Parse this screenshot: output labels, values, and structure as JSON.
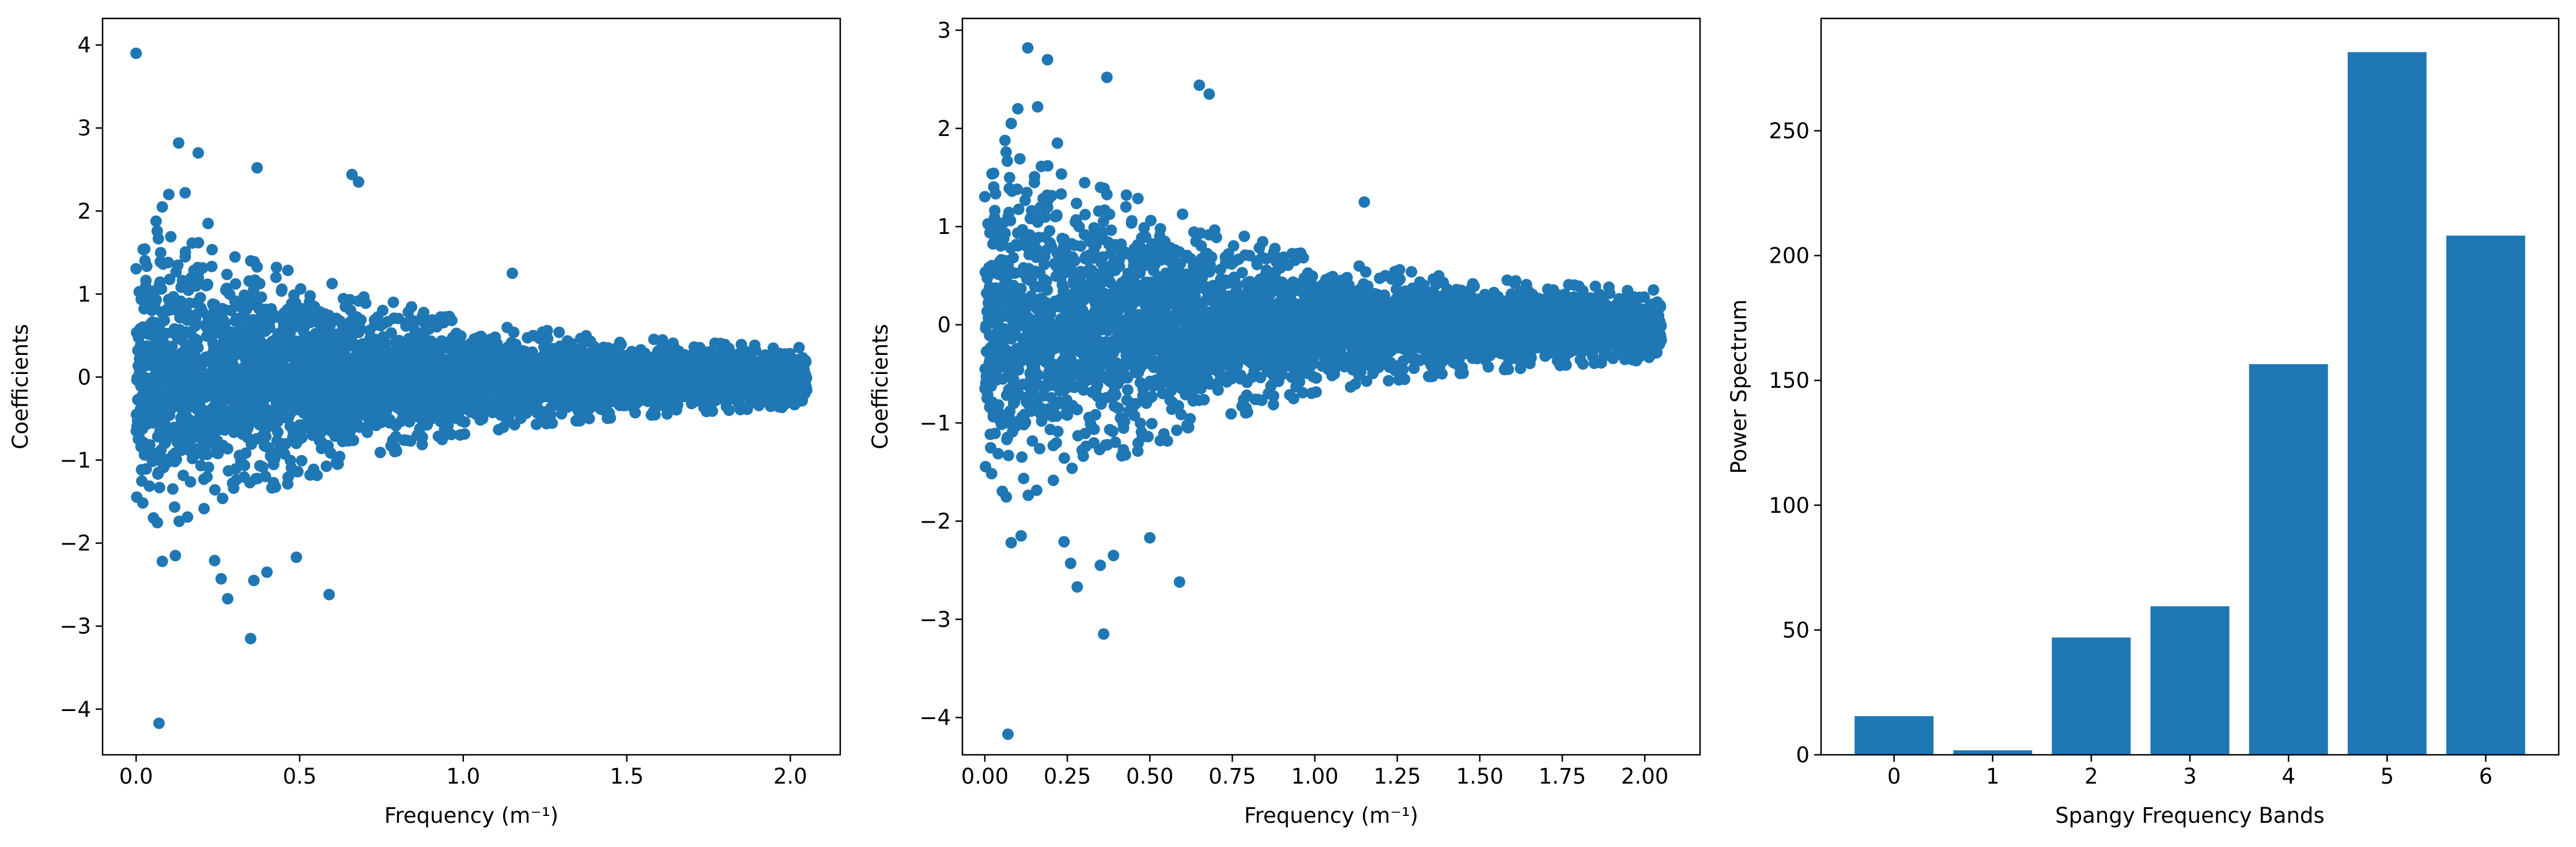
{
  "colors": {
    "marker": "#1f77b4",
    "bar": "#1f77b4",
    "axis": "#000000",
    "background": "#ffffff"
  },
  "chart_data": [
    {
      "type": "scatter",
      "xlabel": "Frequency (m⁻¹)",
      "ylabel": "Coefficients",
      "xlim": [
        -0.1025,
        2.1525
      ],
      "ylim": [
        -4.55,
        4.32
      ],
      "xticks": [
        0.0,
        0.5,
        1.0,
        1.5,
        2.0
      ],
      "xtick_labels": [
        "0.0",
        "0.5",
        "1.0",
        "1.5",
        "2.0"
      ],
      "yticks": [
        -4,
        -3,
        -2,
        -1,
        0,
        1,
        2,
        3,
        4
      ],
      "ytick_labels": [
        "−4",
        "−3",
        "−2",
        "−1",
        "0",
        "1",
        "2",
        "3",
        "4"
      ],
      "grid": false,
      "series": [
        {
          "x_range": [
            0.0,
            2.05
          ],
          "point_count": 4096,
          "envelope": {
            "x": [
              0.0,
              0.25,
              0.5,
              0.75,
              1.0,
              1.25,
              1.5,
              1.75,
              2.05
            ],
            "spread": [
              1.6,
              1.2,
              1.0,
              0.75,
              0.55,
              0.45,
              0.38,
              0.33,
              0.28
            ]
          },
          "outliers": [
            {
              "x": 0.0,
              "y": 3.9
            },
            {
              "x": 0.07,
              "y": -4.17
            },
            {
              "x": 0.35,
              "y": -3.15
            },
            {
              "x": 0.13,
              "y": 2.82
            },
            {
              "x": 0.19,
              "y": 2.7
            },
            {
              "x": 0.37,
              "y": 2.52
            },
            {
              "x": 0.1,
              "y": 2.2
            },
            {
              "x": 0.15,
              "y": 2.22
            },
            {
              "x": 0.66,
              "y": 2.44
            },
            {
              "x": 0.68,
              "y": 2.35
            },
            {
              "x": 0.08,
              "y": 2.05
            },
            {
              "x": 0.22,
              "y": 1.85
            },
            {
              "x": 0.08,
              "y": -2.22
            },
            {
              "x": 0.12,
              "y": -2.15
            },
            {
              "x": 0.24,
              "y": -2.21
            },
            {
              "x": 0.28,
              "y": -2.67
            },
            {
              "x": 0.26,
              "y": -2.43
            },
            {
              "x": 0.36,
              "y": -2.45
            },
            {
              "x": 0.4,
              "y": -2.35
            },
            {
              "x": 0.49,
              "y": -2.17
            },
            {
              "x": 0.59,
              "y": -2.62
            },
            {
              "x": 1.15,
              "y": 1.25
            }
          ]
        }
      ]
    },
    {
      "type": "scatter",
      "xlabel": "Frequency (m⁻¹)",
      "ylabel": "Coefficients",
      "xlim": [
        -0.068,
        2.1675
      ],
      "ylim": [
        -4.38,
        3.12
      ],
      "xticks": [
        0.0,
        0.25,
        0.5,
        0.75,
        1.0,
        1.25,
        1.5,
        1.75,
        2.0
      ],
      "xtick_labels": [
        "0.00",
        "0.25",
        "0.50",
        "0.75",
        "1.00",
        "1.25",
        "1.50",
        "1.75",
        "2.00"
      ],
      "yticks": [
        -4,
        -3,
        -2,
        -1,
        0,
        1,
        2,
        3
      ],
      "ytick_labels": [
        "−4",
        "−3",
        "−2",
        "−1",
        "0",
        "1",
        "2",
        "3"
      ],
      "grid": false,
      "series": [
        {
          "x_range": [
            0.0,
            2.05
          ],
          "point_count": 4096,
          "envelope": {
            "x": [
              0.0,
              0.25,
              0.5,
              0.75,
              1.0,
              1.25,
              1.5,
              1.75,
              2.05
            ],
            "spread": [
              1.6,
              1.2,
              1.0,
              0.75,
              0.55,
              0.45,
              0.38,
              0.33,
              0.28
            ]
          },
          "outliers": [
            {
              "x": 0.07,
              "y": -4.17
            },
            {
              "x": 0.36,
              "y": -3.15
            },
            {
              "x": 0.13,
              "y": 2.82
            },
            {
              "x": 0.19,
              "y": 2.7
            },
            {
              "x": 0.37,
              "y": 2.52
            },
            {
              "x": 0.1,
              "y": 2.2
            },
            {
              "x": 0.16,
              "y": 2.22
            },
            {
              "x": 0.65,
              "y": 2.44
            },
            {
              "x": 0.68,
              "y": 2.35
            },
            {
              "x": 0.08,
              "y": 2.05
            },
            {
              "x": 0.22,
              "y": 1.85
            },
            {
              "x": 0.08,
              "y": -2.22
            },
            {
              "x": 0.11,
              "y": -2.15
            },
            {
              "x": 0.24,
              "y": -2.21
            },
            {
              "x": 0.28,
              "y": -2.67
            },
            {
              "x": 0.26,
              "y": -2.43
            },
            {
              "x": 0.35,
              "y": -2.45
            },
            {
              "x": 0.39,
              "y": -2.35
            },
            {
              "x": 0.5,
              "y": -2.17
            },
            {
              "x": 0.59,
              "y": -2.62
            },
            {
              "x": 1.15,
              "y": 1.25
            },
            {
              "x": 0.04,
              "y": 0.05
            }
          ]
        }
      ]
    },
    {
      "type": "bar",
      "xlabel": "Spangy Frequency Bands",
      "ylabel": "Power Spectrum",
      "categories": [
        "0",
        "1",
        "2",
        "3",
        "4",
        "5",
        "6"
      ],
      "values": [
        15.5,
        1.8,
        47,
        59.5,
        156.5,
        281.5,
        208
      ],
      "ylim": [
        0,
        295
      ],
      "xlim": [
        -0.74,
        6.74
      ],
      "yticks": [
        0,
        50,
        100,
        150,
        200,
        250
      ],
      "ytick_labels": [
        "0",
        "50",
        "100",
        "150",
        "200",
        "250"
      ],
      "grid": false
    }
  ]
}
